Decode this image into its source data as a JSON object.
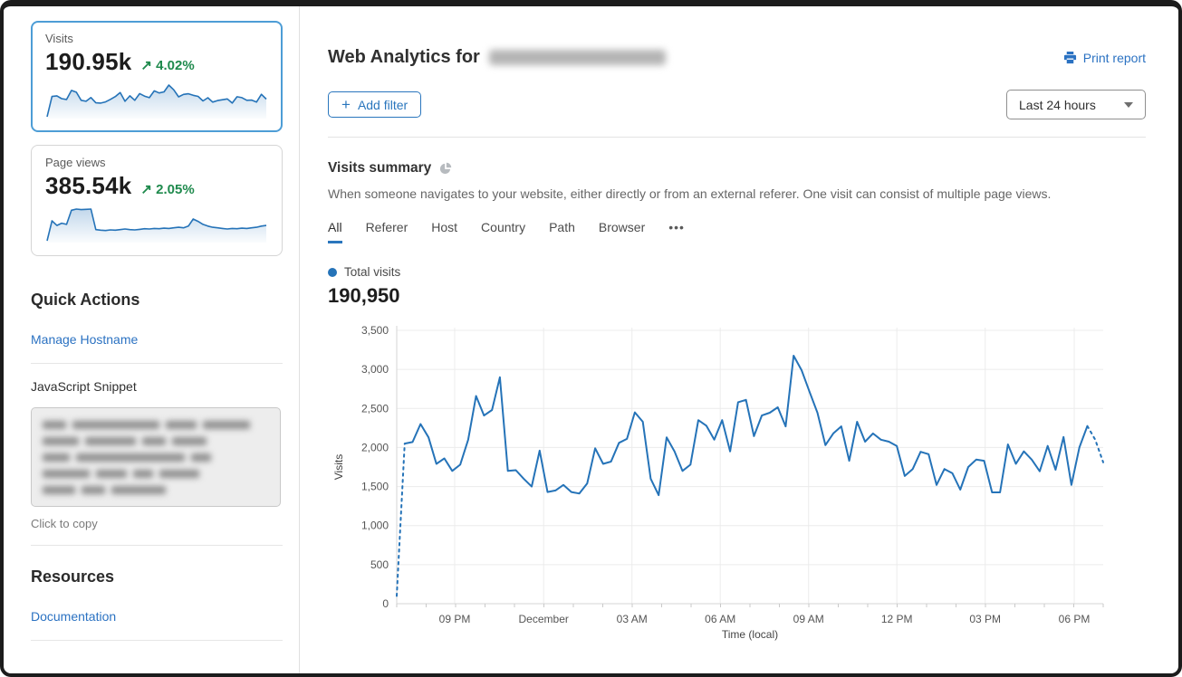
{
  "colors": {
    "accent": "#2a76bd",
    "link": "#2b72c2",
    "green": "#1f8a4d",
    "selected_border": "#4d9dd6",
    "line": "#2573b8"
  },
  "sidebar": {
    "cards": [
      {
        "label": "Visits",
        "value": "190.95k",
        "arrow": "↗",
        "delta": "4.02%",
        "selected": true,
        "spark": [
          100,
          2070,
          2130,
          1860,
          1780,
          2660,
          2480,
          1700,
          1600,
          1960,
          1450,
          1430,
          1540,
          1790,
          2060,
          2450,
          1600,
          2130,
          1700,
          2350,
          2100,
          1950,
          2610,
          2410,
          2515,
          3175,
          2715,
          2030,
          2270,
          2330,
          2180,
          2075,
          1635,
          1945,
          1520,
          1670,
          1750,
          1830,
          1425,
          2040,
          1950,
          1695,
          1715,
          1520,
          2275,
          1810
        ]
      },
      {
        "label": "Page views",
        "value": "385.54k",
        "arrow": "↗",
        "delta": "2.05%",
        "selected": false,
        "spark": [
          400,
          3800,
          3000,
          3400,
          3200,
          5600,
          5800,
          5700,
          5750,
          5800,
          2300,
          2200,
          2150,
          2250,
          2200,
          2300,
          2400,
          2300,
          2250,
          2350,
          2450,
          2400,
          2500,
          2450,
          2550,
          2500,
          2600,
          2700,
          2600,
          2900,
          4100,
          3700,
          3200,
          2900,
          2700,
          2600,
          2500,
          2400,
          2500,
          2450,
          2550,
          2500,
          2600,
          2700,
          2900,
          3000
        ]
      }
    ],
    "quick_actions": {
      "title": "Quick Actions",
      "manage_hostname": "Manage Hostname",
      "snippet_label": "JavaScript Snippet",
      "copy_hint": "Click to copy"
    },
    "resources": {
      "title": "Resources",
      "documentation": "Documentation"
    }
  },
  "header": {
    "title_prefix": "Web Analytics for",
    "print_report": "Print report",
    "add_filter_plus": "+",
    "add_filter_label": "Add filter",
    "time_range": "Last 24 hours"
  },
  "summary": {
    "title": "Visits summary",
    "description": "When someone navigates to your website, either directly or from an external referer. One visit can consist of multiple page views.",
    "tabs": [
      "All",
      "Referer",
      "Host",
      "Country",
      "Path",
      "Browser",
      "•••"
    ],
    "active_tab": "All",
    "legend_label": "Total visits",
    "total": "190,950"
  },
  "chart_data": {
    "type": "line",
    "title": "Total visits",
    "xlabel": "Time (local)",
    "ylabel": "Visits",
    "ylim": [
      0,
      3500
    ],
    "grid": true,
    "legend_position": "top-left",
    "y_ticks": [
      {
        "v": 0,
        "label": "0"
      },
      {
        "v": 500,
        "label": "500"
      },
      {
        "v": 1000,
        "label": "1,000"
      },
      {
        "v": 1500,
        "label": "1,500"
      },
      {
        "v": 2000,
        "label": "2,000"
      },
      {
        "v": 2500,
        "label": "2,500"
      },
      {
        "v": 3000,
        "label": "3,000"
      },
      {
        "v": 3500,
        "label": "3,500"
      }
    ],
    "x_ticks": [
      {
        "f": 0.082,
        "label": "09 PM"
      },
      {
        "f": 0.208,
        "label": "December"
      },
      {
        "f": 0.333,
        "label": "03 AM"
      },
      {
        "f": 0.458,
        "label": "06 AM"
      },
      {
        "f": 0.583,
        "label": "09 AM"
      },
      {
        "f": 0.708,
        "label": "12 PM"
      },
      {
        "f": 0.833,
        "label": "03 PM"
      },
      {
        "f": 0.959,
        "label": "06 PM"
      }
    ],
    "minor_x_ticks": 24,
    "dashed_head_points": 1,
    "dashed_tail_points": 2,
    "values": [
      100,
      2050,
      2070,
      2300,
      2130,
      1790,
      1860,
      1700,
      1780,
      2100,
      2660,
      2410,
      2480,
      2900,
      1700,
      1710,
      1600,
      1500,
      1960,
      1430,
      1450,
      1520,
      1430,
      1410,
      1540,
      1990,
      1790,
      1820,
      2060,
      2110,
      2450,
      2330,
      1600,
      1390,
      2130,
      1950,
      1700,
      1780,
      2350,
      2280,
      2100,
      2350,
      1950,
      2580,
      2610,
      2145,
      2410,
      2445,
      2515,
      2270,
      3175,
      2990,
      2715,
      2445,
      2030,
      2180,
      2270,
      1830,
      2330,
      2075,
      2180,
      2100,
      2075,
      2020,
      1635,
      1725,
      1945,
      1915,
      1520,
      1725,
      1670,
      1460,
      1750,
      1845,
      1830,
      1425,
      1425,
      2040,
      1790,
      1950,
      1845,
      1695,
      2020,
      1715,
      2135,
      1520,
      2000,
      2275,
      2100,
      1810
    ]
  }
}
